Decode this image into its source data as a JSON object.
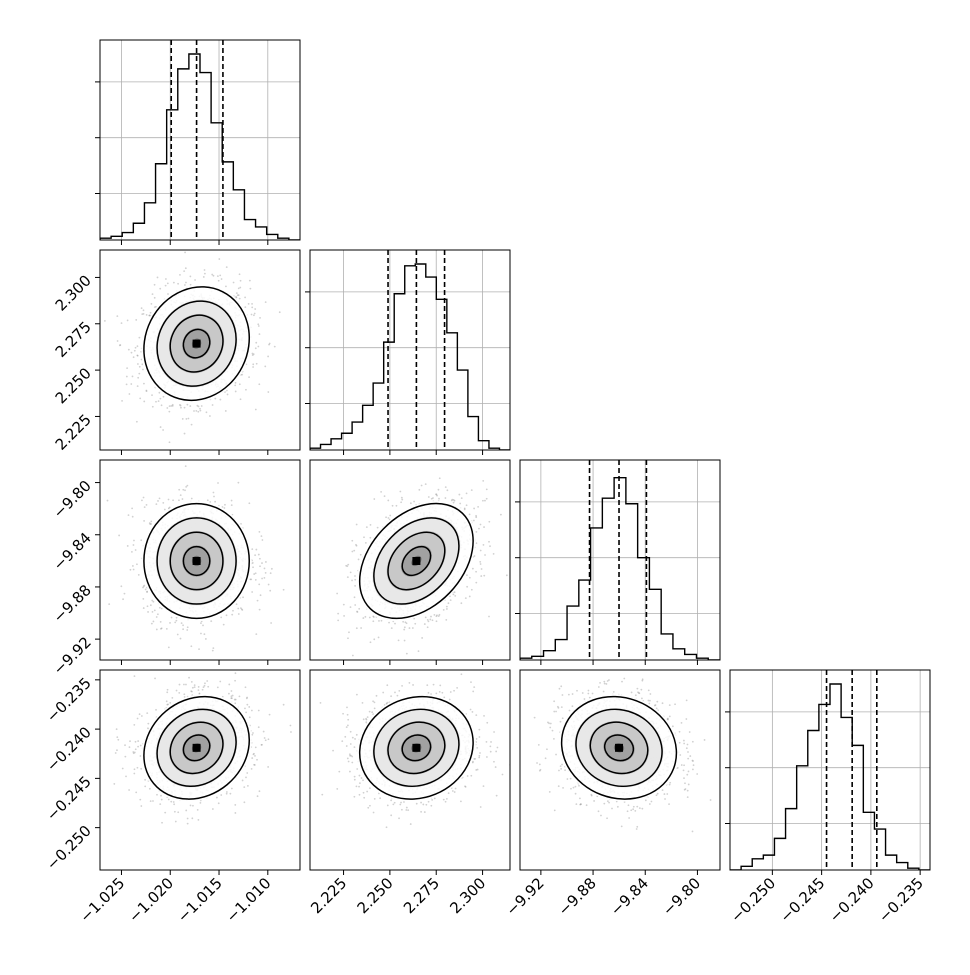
{
  "chart_data": {
    "type": "corner",
    "title": "",
    "parameters": [
      {
        "ticks": [
          -1.025,
          -1.02,
          -1.015,
          -1.01
        ],
        "tick_labels": [
          "−1.025",
          "−1.020",
          "−1.015",
          "−1.010"
        ],
        "range": [
          -1.0272,
          -1.0067
        ],
        "quantiles": [
          -1.0199,
          -1.0173,
          -1.0146
        ],
        "mean": -1.0173,
        "sd": 0.0027
      },
      {
        "ticks": [
          2.225,
          2.25,
          2.275,
          2.3
        ],
        "tick_labels": [
          "2.225",
          "2.250",
          "2.275",
          "2.300"
        ],
        "range": [
          2.2069,
          2.3148
        ],
        "quantiles": [
          2.249,
          2.2643,
          2.2795
        ],
        "mean": 2.2643,
        "sd": 0.0153
      },
      {
        "ticks": [
          -9.92,
          -9.88,
          -9.84,
          -9.8
        ],
        "tick_labels": [
          "−9.92",
          "−9.88",
          "−9.84",
          "−9.80"
        ],
        "range": [
          -9.936,
          -9.7827
        ],
        "quantiles": [
          -9.8827,
          -9.8601,
          -9.8391
        ],
        "mean": -9.8601,
        "sd": 0.022
      },
      {
        "ticks": [
          -0.25,
          -0.245,
          -0.24,
          -0.235
        ],
        "tick_labels": [
          "−0.250",
          "−0.245",
          "−0.240",
          "−0.235"
        ],
        "range": [
          -0.2543,
          -0.234
        ],
        "quantiles": [
          -0.2445,
          -0.2419,
          -0.2394
        ],
        "mean": -0.2419,
        "sd": 0.0026
      }
    ],
    "histograms": [
      [
        0.01,
        0.02,
        0.04,
        0.09,
        0.2,
        0.41,
        0.7,
        0.92,
        1.0,
        0.9,
        0.63,
        0.42,
        0.27,
        0.11,
        0.07,
        0.03,
        0.01,
        0.0
      ],
      [
        0.01,
        0.03,
        0.06,
        0.09,
        0.15,
        0.24,
        0.36,
        0.58,
        0.84,
        0.99,
        1.0,
        0.93,
        0.81,
        0.63,
        0.43,
        0.18,
        0.05,
        0.01,
        0.0
      ],
      [
        0.01,
        0.02,
        0.05,
        0.11,
        0.29,
        0.43,
        0.71,
        0.87,
        0.98,
        0.84,
        0.55,
        0.38,
        0.14,
        0.06,
        0.03,
        0.01,
        0.0
      ],
      [
        0.0,
        0.02,
        0.06,
        0.08,
        0.17,
        0.33,
        0.56,
        0.75,
        0.89,
        1.0,
        0.82,
        0.67,
        0.31,
        0.22,
        0.08,
        0.04,
        0.01,
        0.0
      ]
    ],
    "correlations": [
      [
        1.0,
        0.1,
        0.0,
        0.15
      ],
      [
        0.1,
        1.0,
        0.35,
        0.1
      ],
      [
        0.0,
        0.35,
        1.0,
        -0.1
      ],
      [
        0.15,
        0.1,
        -0.1,
        1.0
      ]
    ],
    "contour_levels_sigma": [
      0.5,
      1.0,
      1.5,
      2.0
    ],
    "grid": true
  }
}
